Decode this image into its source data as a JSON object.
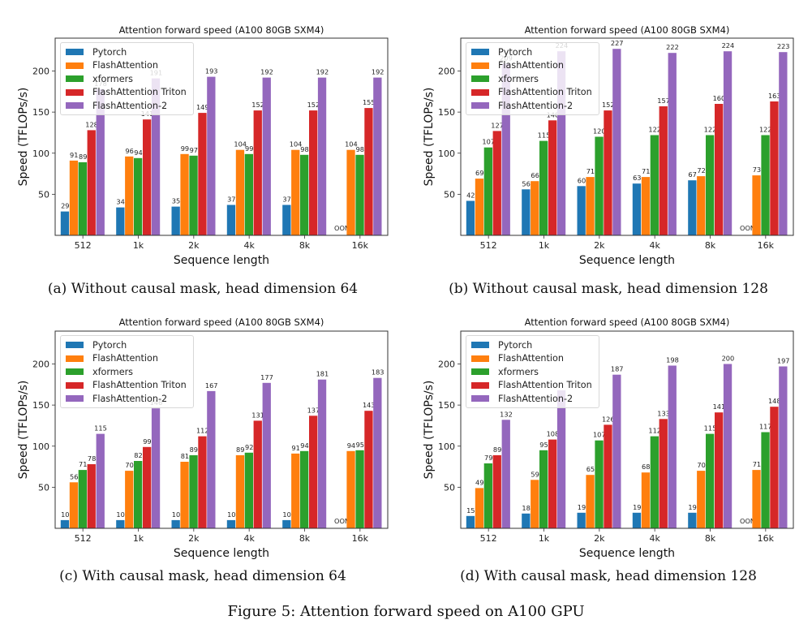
{
  "figure_caption": "Figure 5: Attention forward speed on A100 GPU",
  "series_colors": {
    "Pytorch": "#1f77b4",
    "FlashAttention": "#ff7f0e",
    "xformers": "#2ca02c",
    "FlashAttention Triton": "#d62728",
    "FlashAttention-2": "#9467bd"
  },
  "chart_data": [
    {
      "type": "bar",
      "title": "Attention forward speed (A100 80GB SXM4)",
      "subcaption": "(a) Without causal mask, head dimension 64",
      "xlabel": "Sequence length",
      "ylabel": "Speed (TFLOPs/s)",
      "categories": [
        "512",
        "1k",
        "2k",
        "4k",
        "8k",
        "16k"
      ],
      "yticks": [
        50,
        100,
        150,
        200
      ],
      "ylim": [
        0,
        240
      ],
      "grid": false,
      "legend": "top-left",
      "series": [
        {
          "name": "Pytorch",
          "values": [
            29,
            34,
            35,
            37,
            37,
            null
          ],
          "labels": [
            "29",
            "34",
            "35",
            "37",
            "37",
            "OOM"
          ]
        },
        {
          "name": "FlashAttention",
          "values": [
            91,
            96,
            99,
            104,
            104,
            104
          ],
          "labels": [
            "91",
            "96",
            "99",
            "104",
            "104",
            "104"
          ]
        },
        {
          "name": "xformers",
          "values": [
            89,
            94,
            97,
            99,
            98,
            98
          ],
          "labels": [
            "89",
            "94",
            "97",
            "99",
            "98",
            "98"
          ]
        },
        {
          "name": "FlashAttention Triton",
          "values": [
            128,
            141,
            149,
            152,
            152,
            155
          ],
          "labels": [
            "128",
            "141",
            "149",
            "152",
            "152",
            "155"
          ]
        },
        {
          "name": "FlashAttention-2",
          "values": [
            178,
            191,
            193,
            192,
            192,
            192
          ],
          "labels": [
            "178",
            "191",
            "193",
            "192",
            "192",
            "192"
          ]
        }
      ]
    },
    {
      "type": "bar",
      "title": "Attention forward speed (A100 80GB SXM4)",
      "subcaption": "(b) Without causal mask, head dimension 128",
      "xlabel": "Sequence length",
      "ylabel": "Speed (TFLOPs/s)",
      "categories": [
        "512",
        "1k",
        "2k",
        "4k",
        "8k",
        "16k"
      ],
      "yticks": [
        50,
        100,
        150,
        200
      ],
      "ylim": [
        0,
        240
      ],
      "grid": false,
      "legend": "top-left",
      "series": [
        {
          "name": "Pytorch",
          "values": [
            42,
            56,
            60,
            63,
            67,
            null
          ],
          "labels": [
            "42",
            "56",
            "60",
            "63",
            "67",
            "OOM"
          ]
        },
        {
          "name": "FlashAttention",
          "values": [
            69,
            66,
            71,
            71,
            72,
            73
          ],
          "labels": [
            "69",
            "66",
            "71",
            "71",
            "72",
            "73"
          ]
        },
        {
          "name": "xformers",
          "values": [
            107,
            115,
            120,
            122,
            122,
            122
          ],
          "labels": [
            "107",
            "115",
            "120",
            "122",
            "122",
            "122"
          ]
        },
        {
          "name": "FlashAttention Triton",
          "values": [
            127,
            140,
            152,
            157,
            160,
            163
          ],
          "labels": [
            "127",
            "140",
            "152",
            "157",
            "160",
            "163"
          ]
        },
        {
          "name": "FlashAttention-2",
          "values": [
            209,
            224,
            227,
            222,
            224,
            223
          ],
          "labels": [
            "209",
            "224",
            "227",
            "222",
            "224",
            "223"
          ]
        }
      ]
    },
    {
      "type": "bar",
      "title": "Attention forward speed (A100 80GB SXM4)",
      "subcaption": "(c) With causal mask, head dimension 64",
      "xlabel": "Sequence length",
      "ylabel": "Speed (TFLOPs/s)",
      "categories": [
        "512",
        "1k",
        "2k",
        "4k",
        "8k",
        "16k"
      ],
      "yticks": [
        50,
        100,
        150,
        200
      ],
      "ylim": [
        0,
        240
      ],
      "grid": false,
      "legend": "top-left",
      "series": [
        {
          "name": "Pytorch",
          "values": [
            10,
            10,
            10,
            10,
            10,
            null
          ],
          "labels": [
            "10",
            "10",
            "10",
            "10",
            "10",
            "OOM"
          ]
        },
        {
          "name": "FlashAttention",
          "values": [
            56,
            70,
            81,
            89,
            91,
            94
          ],
          "labels": [
            "56",
            "70",
            "81",
            "89",
            "91",
            "94"
          ]
        },
        {
          "name": "xformers",
          "values": [
            71,
            82,
            89,
            92,
            94,
            95
          ],
          "labels": [
            "71",
            "82",
            "89",
            "92",
            "94",
            "95"
          ]
        },
        {
          "name": "FlashAttention Triton",
          "values": [
            78,
            99,
            112,
            131,
            137,
            143
          ],
          "labels": [
            "78",
            "99",
            "112",
            "131",
            "137",
            "143"
          ]
        },
        {
          "name": "FlashAttention-2",
          "values": [
            115,
            146,
            167,
            177,
            181,
            183
          ],
          "labels": [
            "115",
            "146",
            "167",
            "177",
            "181",
            "183"
          ]
        }
      ]
    },
    {
      "type": "bar",
      "title": "Attention forward speed (A100 80GB SXM4)",
      "subcaption": "(d) With causal mask, head dimension 128",
      "xlabel": "Sequence length",
      "ylabel": "Speed (TFLOPs/s)",
      "categories": [
        "512",
        "1k",
        "2k",
        "4k",
        "8k",
        "16k"
      ],
      "yticks": [
        50,
        100,
        150,
        200
      ],
      "ylim": [
        0,
        240
      ],
      "grid": false,
      "legend": "top-left",
      "series": [
        {
          "name": "Pytorch",
          "values": [
            15,
            18,
            19,
            19,
            19,
            null
          ],
          "labels": [
            "15",
            "18",
            "19",
            "19",
            "19",
            "OOM"
          ]
        },
        {
          "name": "FlashAttention",
          "values": [
            49,
            59,
            65,
            68,
            70,
            71
          ],
          "labels": [
            "49",
            "59",
            "65",
            "68",
            "70",
            "71"
          ]
        },
        {
          "name": "xformers",
          "values": [
            79,
            95,
            107,
            112,
            115,
            117
          ],
          "labels": [
            "79",
            "95",
            "107",
            "112",
            "115",
            "117"
          ]
        },
        {
          "name": "FlashAttention Triton",
          "values": [
            89,
            108,
            126,
            133,
            141,
            148
          ],
          "labels": [
            "89",
            "108",
            "126",
            "133",
            "141",
            "148"
          ]
        },
        {
          "name": "FlashAttention-2",
          "values": [
            132,
            168,
            187,
            198,
            200,
            197
          ],
          "labels": [
            "132",
            "",
            "187",
            "198",
            "200",
            "197"
          ]
        }
      ]
    }
  ]
}
